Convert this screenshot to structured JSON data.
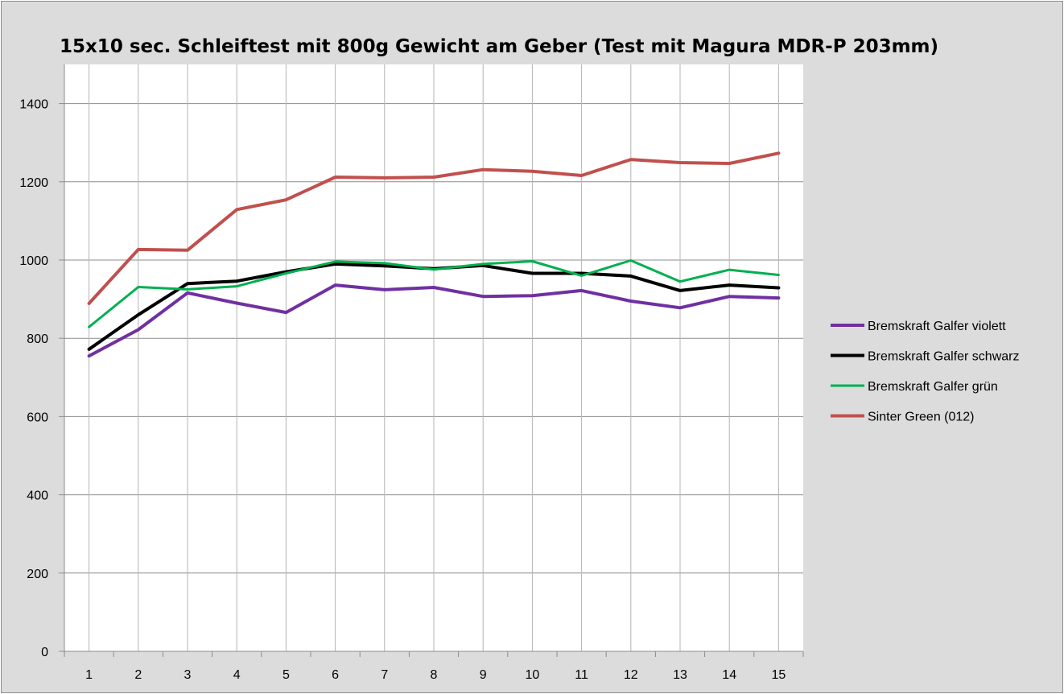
{
  "chart_data": {
    "type": "line",
    "title": "15x10 sec. Schleiftest mit 800g Gewicht am Geber (Test mit Magura MDR-P 203mm)",
    "xlabel": "",
    "ylabel": "",
    "categories": [
      "1",
      "2",
      "3",
      "4",
      "5",
      "6",
      "7",
      "8",
      "9",
      "10",
      "11",
      "12",
      "13",
      "14",
      "15"
    ],
    "ylim": [
      0,
      1500
    ],
    "yticks": [
      0,
      200,
      400,
      600,
      800,
      1000,
      1200,
      1400
    ],
    "grid": true,
    "legend_position": "right",
    "background": "#dcdcdc",
    "plot_background": "#ffffff",
    "series": [
      {
        "name": "Bremskraft Galfer violett",
        "color": "#7030a0",
        "width": 4,
        "values": [
          755,
          822,
          916,
          890,
          866,
          936,
          924,
          930,
          907,
          909,
          922,
          895,
          878,
          907,
          903
        ]
      },
      {
        "name": "Bremskraft Galfer schwarz",
        "color": "#000000",
        "width": 4,
        "values": [
          772,
          860,
          940,
          946,
          970,
          990,
          985,
          978,
          986,
          966,
          966,
          959,
          922,
          936,
          929
        ]
      },
      {
        "name": "Bremskraft Galfer grün",
        "color": "#00b050",
        "width": 3,
        "values": [
          829,
          931,
          925,
          933,
          966,
          996,
          992,
          976,
          990,
          997,
          960,
          999,
          945,
          975,
          962
        ]
      },
      {
        "name": "Sinter Green (012)",
        "color": "#c0504d",
        "width": 4,
        "values": [
          889,
          1027,
          1025,
          1129,
          1154,
          1212,
          1210,
          1212,
          1231,
          1227,
          1216,
          1257,
          1249,
          1247,
          1273
        ]
      }
    ]
  }
}
